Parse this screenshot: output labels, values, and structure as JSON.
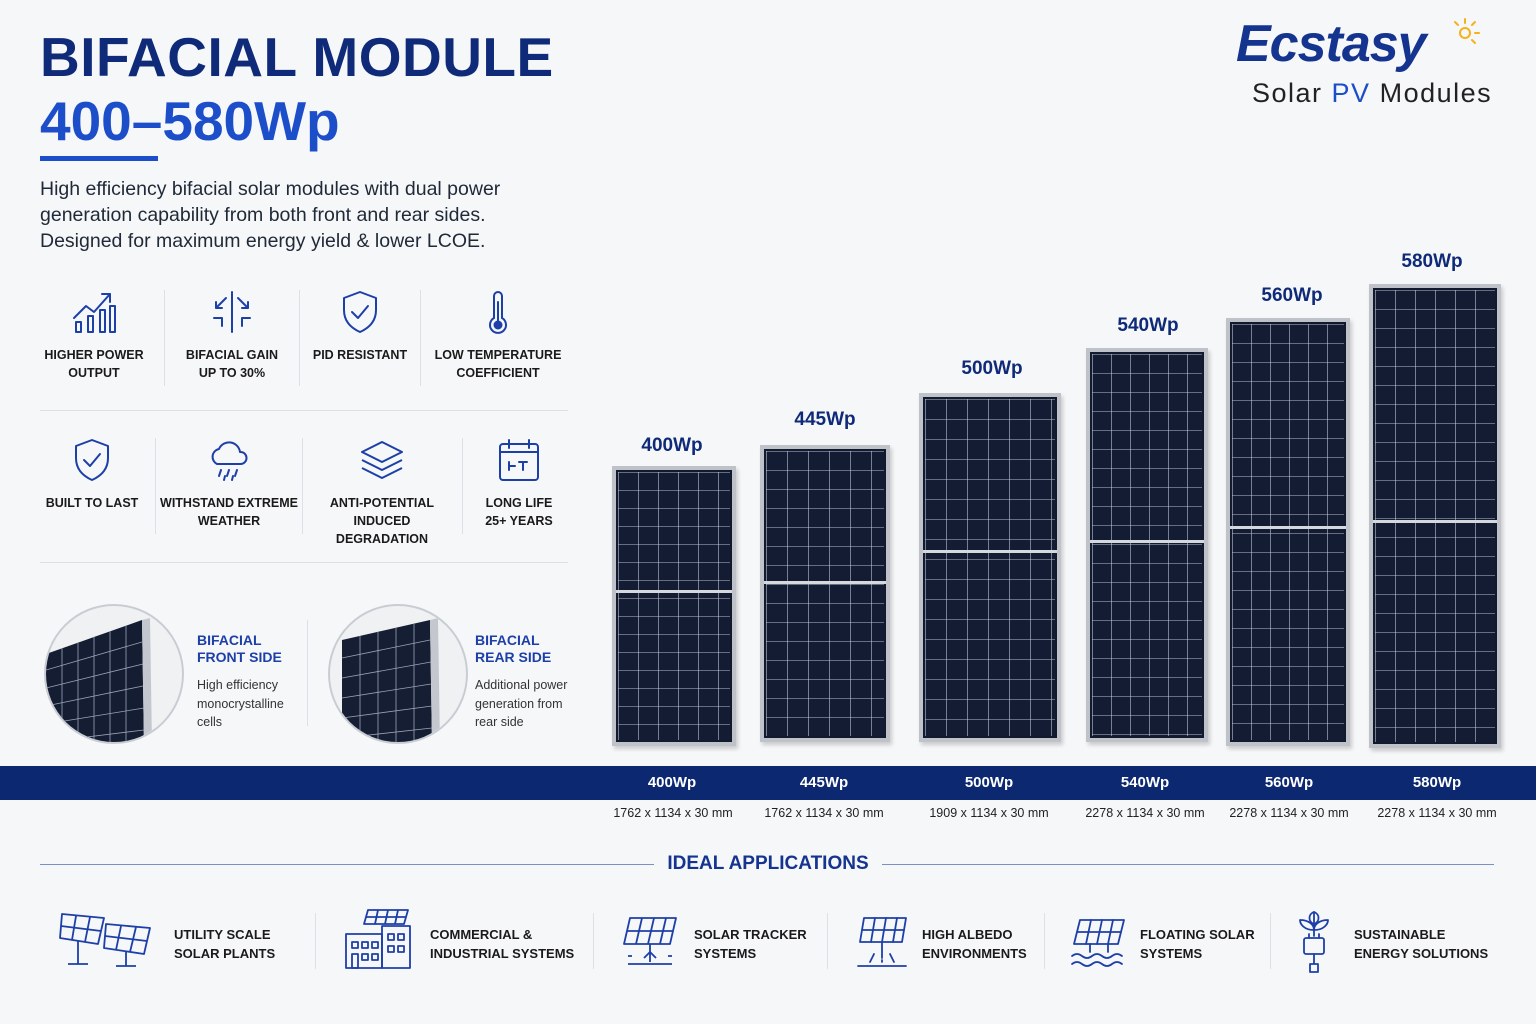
{
  "header": {
    "title": "BIFACIAL MODULE",
    "subtitle": "400–580Wp",
    "description": [
      "High efficiency bifacial solar modules with dual power",
      "generation capability from both front and rear sides.",
      "Designed for maximum energy yield & lower LCOE."
    ]
  },
  "brand": {
    "name": "Ecstasy",
    "tagline_pre": "Solar ",
    "tagline_pv": "PV",
    "tagline_post": " Modules",
    "icon": "sun-icon"
  },
  "features_row1": [
    {
      "icon": "chart-up-icon",
      "line1": "HIGHER POWER",
      "line2": "OUTPUT"
    },
    {
      "icon": "bifacial-arrows-icon",
      "line1": "BIFACIAL GAIN",
      "line2": "UP TO 30%"
    },
    {
      "icon": "shield-check-icon",
      "line1": "PID RESISTANT",
      "line2": ""
    },
    {
      "icon": "thermometer-icon",
      "line1": "LOW TEMPERATURE",
      "line2": "COEFFICIENT"
    }
  ],
  "features_row2": [
    {
      "icon": "shield-check-icon",
      "line1": "BUILT TO LAST",
      "line2": ""
    },
    {
      "icon": "cloud-rain-icon",
      "line1": "WITHSTAND EXTREME",
      "line2": "WEATHER"
    },
    {
      "icon": "layers-icon",
      "line1": "ANTI-POTENTIAL",
      "line2": "INDUCED DEGRADATION"
    },
    {
      "icon": "calendar-icon",
      "line1": "LONG LIFE",
      "line2": "25+ YEARS"
    }
  ],
  "sides": [
    {
      "title1": "BIFACIAL",
      "title2": "FRONT SIDE",
      "text": [
        "High efficiency",
        "monocrystalline",
        "cells"
      ]
    },
    {
      "title1": "BIFACIAL",
      "title2": "REAR SIDE",
      "text": [
        "Additional power",
        "generation from",
        "rear side"
      ]
    }
  ],
  "modules": [
    {
      "power": "400Wp",
      "dims": "1762 x 1134 x 30 mm"
    },
    {
      "power": "445Wp",
      "dims": "1762 x 1134 x 30 mm"
    },
    {
      "power": "500Wp",
      "dims": "1909 x 1134 x 30 mm"
    },
    {
      "power": "540Wp",
      "dims": "2278 x 1134 x 30 mm"
    },
    {
      "power": "560Wp",
      "dims": "2278 x 1134 x 30 mm"
    },
    {
      "power": "580Wp",
      "dims": "2278 x 1134 x 30 mm"
    }
  ],
  "applications": {
    "title": "IDEAL APPLICATIONS",
    "items": [
      {
        "icon": "solar-plant-icon",
        "line1": "UTILITY SCALE",
        "line2": "SOLAR PLANTS"
      },
      {
        "icon": "commercial-building-icon",
        "line1": "COMMERCIAL &",
        "line2": "INDUSTRIAL SYSTEMS"
      },
      {
        "icon": "solar-tracker-icon",
        "line1": "SOLAR TRACKER",
        "line2": "SYSTEMS"
      },
      {
        "icon": "high-albedo-icon",
        "line1": "HIGH ALBEDO",
        "line2": "ENVIRONMENTS"
      },
      {
        "icon": "floating-solar-icon",
        "line1": "FLOATING SOLAR",
        "line2": "SYSTEMS"
      },
      {
        "icon": "plant-plug-icon",
        "line1": "SUSTAINABLE",
        "line2": "ENERGY SOLUTIONS"
      }
    ]
  },
  "colors": {
    "navy": "#0f2a78",
    "accent_blue": "#1d4ec9",
    "bar": "#0c2870",
    "sun": "#f5b21b"
  }
}
